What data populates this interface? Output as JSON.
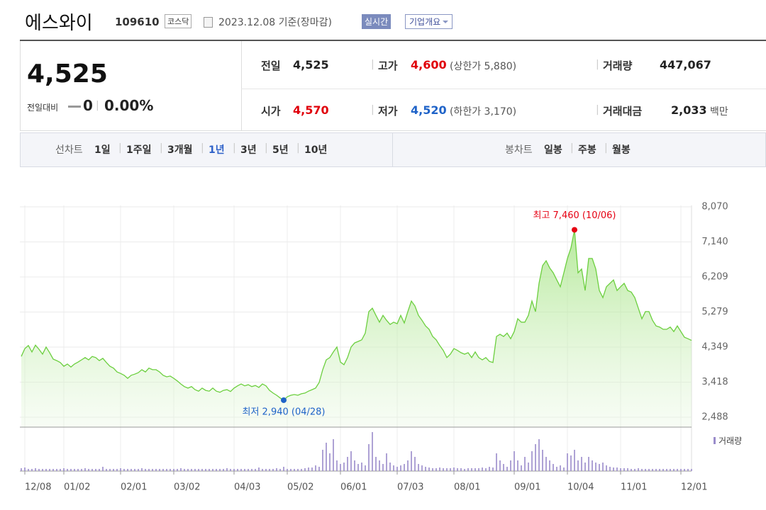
{
  "header": {
    "name": "에스와이",
    "code": "109610",
    "market": "코스닥",
    "date": "2023.12.08 기준(장마감)",
    "realtime": "실시간",
    "company": "기업개요"
  },
  "price": {
    "current": "4,525",
    "change_label": "전일대비",
    "change": "0",
    "change_rate": "0.00%"
  },
  "info": [
    {
      "label": "전일",
      "value": "4,525",
      "color": "#222222"
    },
    {
      "label": "고가",
      "value": "4,600",
      "note": "(상한가 5,880)",
      "color": "#e0000a"
    },
    {
      "label": "거래량",
      "value": "447,067",
      "color": "#222222"
    },
    {
      "label": "시가",
      "value": "4,570",
      "color": "#e0000a"
    },
    {
      "label": "저가",
      "value": "4,520",
      "note": "(하한가 3,170)",
      "color": "#1f63c8"
    },
    {
      "label": "거래대금",
      "value": "2,033",
      "note": "백만",
      "color": "#222222"
    }
  ],
  "tabs": {
    "line_label": "선차트",
    "line_items": [
      "1일",
      "1주일",
      "3개월",
      "1년",
      "3년",
      "5년",
      "10년"
    ],
    "candle_label": "봉차트",
    "candle_items": [
      "일봉",
      "주봉",
      "월봉"
    ]
  },
  "chart_data": {
    "type": "area",
    "xlim": [
      0,
      189
    ],
    "ylim": [
      2225,
      8108
    ],
    "yticks": [
      {
        "value": 8070,
        "label": "8,070"
      },
      {
        "value": 7140,
        "label": "7,140"
      },
      {
        "value": 6209,
        "label": "6,209"
      },
      {
        "value": 5279,
        "label": "5,279"
      },
      {
        "value": 4349,
        "label": "4,349"
      },
      {
        "value": 3418,
        "label": "3,418"
      },
      {
        "value": 2488,
        "label": "2,488"
      }
    ],
    "xticks": [
      {
        "value": 1,
        "label": "12/08"
      },
      {
        "value": 12,
        "label": "01/02"
      },
      {
        "value": 28,
        "label": "02/01"
      },
      {
        "value": 43,
        "label": "03/02"
      },
      {
        "value": 60,
        "label": "04/03"
      },
      {
        "value": 75,
        "label": "05/02"
      },
      {
        "value": 90,
        "label": "06/01"
      },
      {
        "value": 106,
        "label": "07/03"
      },
      {
        "value": 122,
        "label": "08/01"
      },
      {
        "value": 139,
        "label": "09/01"
      },
      {
        "value": 154,
        "label": "10/04"
      },
      {
        "value": 169,
        "label": "11/01"
      },
      {
        "value": 186,
        "label": "12/01"
      }
    ],
    "grid": true,
    "series": [
      {
        "color": "#6ccf3f",
        "values": [
          4100,
          4310,
          4390,
          4220,
          4400,
          4290,
          4160,
          4350,
          4200,
          4030,
          3990,
          3940,
          3840,
          3900,
          3820,
          3900,
          3950,
          4010,
          4070,
          4010,
          4100,
          4070,
          3990,
          4050,
          3940,
          3840,
          3790,
          3690,
          3650,
          3600,
          3520,
          3600,
          3630,
          3670,
          3750,
          3690,
          3790,
          3750,
          3750,
          3690,
          3600,
          3560,
          3580,
          3520,
          3450,
          3370,
          3300,
          3260,
          3300,
          3220,
          3180,
          3260,
          3200,
          3180,
          3260,
          3180,
          3150,
          3200,
          3220,
          3170,
          3260,
          3320,
          3370,
          3320,
          3350,
          3300,
          3330,
          3280,
          3370,
          3320,
          3200,
          3130,
          3070,
          3000,
          2940,
          3030,
          3070,
          3090,
          3070,
          3110,
          3130,
          3180,
          3220,
          3260,
          3410,
          3750,
          4010,
          4070,
          4220,
          4350,
          3950,
          3880,
          4070,
          4350,
          4460,
          4500,
          4540,
          4720,
          5290,
          5380,
          5190,
          5010,
          5190,
          5060,
          4950,
          5010,
          4970,
          5190,
          4990,
          5290,
          5570,
          5440,
          5190,
          5060,
          4910,
          4820,
          4630,
          4540,
          4390,
          4260,
          4070,
          4160,
          4310,
          4260,
          4200,
          4160,
          4200,
          4070,
          4220,
          4070,
          4010,
          4070,
          3970,
          3940,
          4630,
          4690,
          4630,
          4720,
          4570,
          4760,
          5100,
          5010,
          5010,
          5190,
          5570,
          5290,
          6040,
          6510,
          6640,
          6450,
          6320,
          6130,
          5950,
          6320,
          6700,
          6980,
          7460,
          6320,
          6420,
          5850,
          6700,
          6700,
          6420,
          5850,
          5660,
          5950,
          6040,
          6130,
          5850,
          5950,
          6040,
          5850,
          5810,
          5660,
          5380,
          5100,
          5290,
          5290,
          5060,
          4910,
          4880,
          4820,
          4820,
          4880,
          4760,
          4910,
          4760,
          4610,
          4570,
          4525
        ]
      }
    ],
    "volume": {
      "name": "거래량",
      "color": "#9a8ccb",
      "values": [
        4,
        5,
        3,
        3,
        4,
        3,
        3,
        3,
        3,
        3,
        3,
        3,
        4,
        3,
        3,
        3,
        3,
        3,
        4,
        3,
        3,
        3,
        3,
        6,
        3,
        3,
        3,
        3,
        4,
        3,
        3,
        3,
        3,
        3,
        4,
        3,
        3,
        3,
        3,
        3,
        3,
        3,
        3,
        3,
        3,
        4,
        3,
        3,
        3,
        3,
        3,
        3,
        3,
        3,
        3,
        3,
        3,
        3,
        4,
        3,
        3,
        3,
        3,
        3,
        3,
        3,
        3,
        5,
        3,
        3,
        3,
        3,
        4,
        3,
        6,
        3,
        3,
        3,
        3,
        3,
        4,
        5,
        5,
        8,
        6,
        30,
        40,
        25,
        45,
        15,
        10,
        12,
        20,
        28,
        15,
        10,
        12,
        8,
        38,
        55,
        20,
        15,
        10,
        25,
        12,
        8,
        6,
        8,
        10,
        15,
        28,
        20,
        10,
        8,
        6,
        5,
        4,
        4,
        5,
        4,
        4,
        4,
        5,
        4,
        4,
        3,
        4,
        4,
        4,
        4,
        5,
        4,
        6,
        5,
        25,
        15,
        10,
        6,
        15,
        28,
        15,
        8,
        20,
        12,
        28,
        38,
        45,
        30,
        20,
        15,
        10,
        6,
        8,
        5,
        25,
        22,
        30,
        15,
        20,
        12,
        20,
        15,
        12,
        10,
        12,
        8,
        6,
        5,
        5,
        4,
        4,
        4,
        3,
        3,
        4,
        3,
        3,
        3,
        3,
        3,
        3,
        3,
        3,
        3,
        3,
        3,
        3,
        3,
        3,
        3
      ]
    },
    "annotations": {
      "high": {
        "text": "최고 7,460 (10/06)",
        "color": "#e60012"
      },
      "low": {
        "text": "최저 2,940 (04/28)",
        "color": "#1f63c8"
      }
    }
  }
}
